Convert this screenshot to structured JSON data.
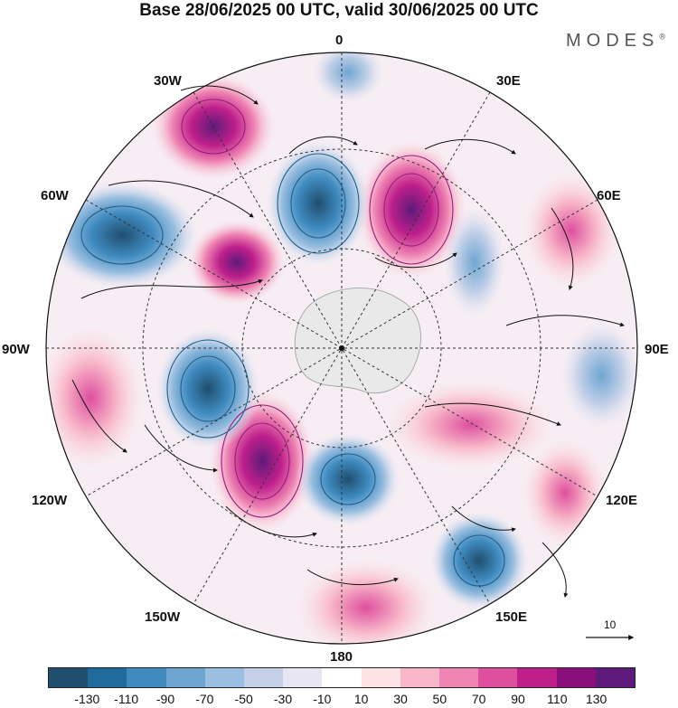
{
  "header": {
    "title": "Base 28/06/2025 00 UTC, valid 30/06/2025 00 UTC",
    "brand": "MODES",
    "brand_mark": "®"
  },
  "map": {
    "projection": "south-polar-stereographic",
    "longitude_labels": {
      "top": "0",
      "top_right": "30E",
      "right_upper": "60E",
      "right": "90E",
      "right_lower": "120E",
      "bottom_right": "150E",
      "bottom": "180",
      "bottom_left": "150W",
      "left_lower": "120W",
      "left": "90W",
      "left_upper": "60W",
      "top_left": "30W"
    },
    "land_color": "#e8e8e8",
    "contour_colors": {
      "negative": "#1f5f8b",
      "positive": "#9b1a7a"
    }
  },
  "reference_vector": {
    "label": "10"
  },
  "colorbar": {
    "colors": [
      "#1f4e6e",
      "#1f6b9b",
      "#3f8bc0",
      "#6ea6d1",
      "#9bbfe0",
      "#c3d0e8",
      "#e8e6f3",
      "#ffffff",
      "#fde3e3",
      "#f8b8c9",
      "#ef85b3",
      "#de4f9e",
      "#be1f8b",
      "#8b0f7a",
      "#5e1a7a"
    ],
    "tick_labels": [
      "-130",
      "-110",
      "-90",
      "-70",
      "-50",
      "-30",
      "-10",
      "10",
      "30",
      "50",
      "70",
      "90",
      "110",
      "130"
    ]
  }
}
